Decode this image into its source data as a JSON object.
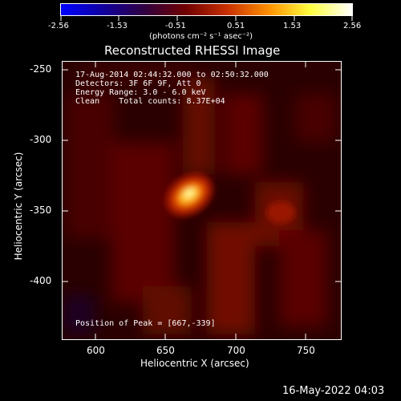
{
  "colorbar": {
    "tick_labels": [
      "-2.56",
      "-1.53",
      "-0.51",
      "0.51",
      "1.53",
      "2.56"
    ],
    "units": "(photons cm⁻² s⁻¹ asec⁻²)",
    "colors": [
      "#0000ff",
      "#1000a0",
      "#300040",
      "#700000",
      "#c83000",
      "#ff9000",
      "#ffff40",
      "#ffffff"
    ]
  },
  "title": "Reconstructed RHESSI Image",
  "info": {
    "line1": "17-Aug-2014 02:44:32.000 to 02:50:32.000",
    "line2": "Detectors: 3F 6F 9F, Att 0",
    "line3": "Energy Range: 3.0 - 6.0 keV",
    "line4": "Clean    Total counts: 8.37E+04",
    "peak": "Position of Peak = [667,-339]"
  },
  "axes": {
    "xlabel": "Heliocentric X (arcsec)",
    "ylabel": "Heliocentric Y (arcsec)",
    "xticks": [
      "600",
      "650",
      "700",
      "750"
    ],
    "yticks": [
      "-250",
      "-300",
      "-350",
      "-400"
    ]
  },
  "timestamp": "16-May-2022 04:03"
}
